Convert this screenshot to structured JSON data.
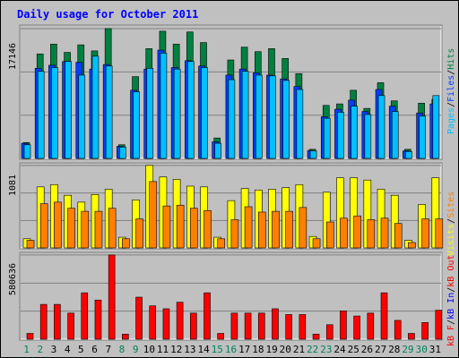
{
  "title": "Daily usage for October 2011",
  "colors": {
    "background": "#c0c0c0",
    "title": "#0000ff",
    "hits": "#008040",
    "files": "#0040ff",
    "pages": "#00c0ff",
    "visits": "#ffff00",
    "sites": "#ff8000",
    "kb_in": "#0000ff",
    "kb_out": "#ff0000",
    "kb_f": "#ff0000",
    "day_weekday": "#000000",
    "day_weekend": "#00805c"
  },
  "chart_data": [
    {
      "type": "bar",
      "panel": "top",
      "ymax_label": "17146",
      "ylim": [
        0,
        17146
      ],
      "grid": true,
      "legend": [
        "Pages",
        "/",
        "Files",
        "/",
        "Hits"
      ],
      "categories": [
        "1",
        "2",
        "3",
        "4",
        "5",
        "6",
        "7",
        "8",
        "9",
        "10",
        "11",
        "12",
        "13",
        "14",
        "15",
        "16",
        "17",
        "18",
        "19",
        "20",
        "21",
        "22",
        "23",
        "24",
        "25",
        "26",
        "27",
        "28",
        "29",
        "30",
        "31"
      ],
      "series": [
        {
          "name": "Hits",
          "values": [
            2100,
            13800,
            15100,
            14000,
            15000,
            14200,
            17150,
            1800,
            10800,
            14500,
            16800,
            15100,
            16700,
            15300,
            2700,
            13000,
            14700,
            14100,
            14500,
            13200,
            11200,
            1200,
            7000,
            7200,
            9000,
            6600,
            10000,
            7600,
            1200,
            7300,
            7800
          ]
        },
        {
          "name": "Files",
          "values": [
            2000,
            11900,
            12300,
            12800,
            12700,
            11800,
            12400,
            1600,
            9000,
            11800,
            14300,
            12000,
            12900,
            12200,
            2200,
            11000,
            11800,
            11300,
            11000,
            10500,
            9500,
            1050,
            5500,
            6500,
            7700,
            6200,
            9100,
            6900,
            1000,
            6000,
            7200
          ]
        },
        {
          "name": "Pages",
          "values": [
            1800,
            11500,
            12000,
            12800,
            11000,
            13500,
            12200,
            1500,
            8800,
            11900,
            13900,
            11800,
            12800,
            12000,
            2000,
            10400,
            11500,
            11000,
            10900,
            10300,
            9100,
            1000,
            5300,
            6100,
            6900,
            5800,
            8300,
            6200,
            900,
            5600,
            8300
          ]
        }
      ]
    },
    {
      "type": "bar",
      "panel": "middle",
      "ymax_label": "1081",
      "ylim": [
        0,
        1081
      ],
      "grid": true,
      "legend": [
        "Visits",
        "/",
        "Sites"
      ],
      "categories": [
        "1",
        "2",
        "3",
        "4",
        "5",
        "6",
        "7",
        "8",
        "9",
        "10",
        "11",
        "12",
        "13",
        "14",
        "15",
        "16",
        "17",
        "18",
        "19",
        "20",
        "21",
        "22",
        "23",
        "24",
        "25",
        "26",
        "27",
        "28",
        "29",
        "30",
        "31"
      ],
      "series": [
        {
          "name": "Visits",
          "values": [
            120,
            800,
            830,
            690,
            600,
            700,
            770,
            140,
            630,
            1081,
            930,
            900,
            810,
            800,
            140,
            620,
            780,
            760,
            770,
            790,
            830,
            150,
            730,
            920,
            920,
            890,
            770,
            690,
            100,
            570,
            920
          ]
        },
        {
          "name": "Sites",
          "values": [
            100,
            580,
            600,
            520,
            480,
            480,
            520,
            120,
            380,
            870,
            550,
            560,
            520,
            490,
            120,
            370,
            540,
            470,
            480,
            480,
            530,
            120,
            340,
            390,
            420,
            370,
            390,
            320,
            70,
            380,
            380
          ]
        }
      ]
    },
    {
      "type": "bar",
      "panel": "bottom",
      "ymax_label": "580636",
      "ylim": [
        0,
        580636
      ],
      "grid": true,
      "legend": [
        "kB F",
        "/",
        "kB In",
        "/",
        "kB Out"
      ],
      "categories": [
        "1",
        "2",
        "3",
        "4",
        "5",
        "6",
        "7",
        "8",
        "9",
        "10",
        "11",
        "12",
        "13",
        "14",
        "15",
        "16",
        "17",
        "18",
        "19",
        "20",
        "21",
        "22",
        "23",
        "24",
        "25",
        "26",
        "27",
        "28",
        "29",
        "30",
        "31"
      ],
      "series": [
        {
          "name": "kB F",
          "values": [
            40000,
            240000,
            240000,
            180000,
            320000,
            270000,
            580636,
            35000,
            290000,
            230000,
            210000,
            255000,
            180000,
            320000,
            40000,
            180000,
            180000,
            180000,
            210000,
            170000,
            170000,
            35000,
            100000,
            195000,
            160000,
            180000,
            320000,
            130000,
            40000,
            115000,
            200000
          ]
        }
      ]
    }
  ]
}
